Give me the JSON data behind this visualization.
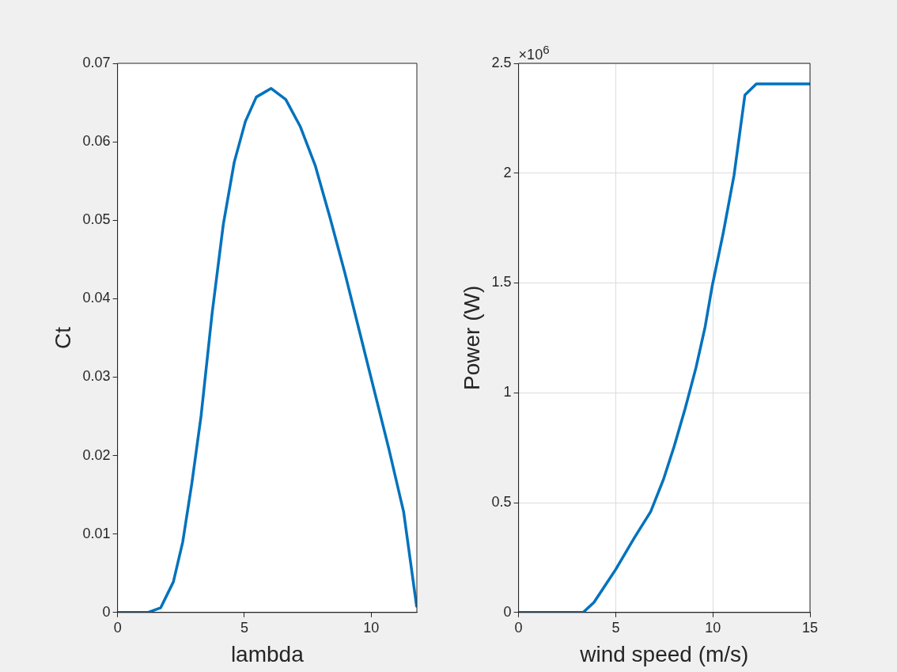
{
  "chart_data": [
    {
      "type": "line",
      "xlabel": "lambda",
      "ylabel": "Ct",
      "xlim": [
        0,
        11.8
      ],
      "xticks": [
        0,
        5,
        10
      ],
      "ylim": [
        0,
        0.07
      ],
      "yticks": [
        0,
        0.01,
        0.02,
        0.03,
        0.04,
        0.05,
        0.06,
        0.07
      ],
      "grid": false,
      "legend": false,
      "series": [
        {
          "color": "#0072bd",
          "x": [
            0,
            1.19,
            1.7,
            2.2,
            2.57,
            2.93,
            3.29,
            3.73,
            4.17,
            4.6,
            5.04,
            5.47,
            6.05,
            6.63,
            7.21,
            7.79,
            8.37,
            8.96,
            9.54,
            10.12,
            10.7,
            11.28,
            11.79
          ],
          "values": [
            0,
            0,
            0.0006,
            0.0039,
            0.009,
            0.0165,
            0.025,
            0.0382,
            0.0495,
            0.0574,
            0.0626,
            0.0657,
            0.0668,
            0.0654,
            0.0619,
            0.057,
            0.0504,
            0.0433,
            0.0358,
            0.0283,
            0.0208,
            0.0128,
            0.0008
          ]
        }
      ]
    },
    {
      "type": "line",
      "xlabel": "wind speed (m/s)",
      "ylabel": "Power (W)",
      "annotations": [
        "×10$^{6}$"
      ],
      "xlim": [
        0,
        15
      ],
      "xticks": [
        0,
        5,
        10,
        15
      ],
      "ylim": [
        0,
        2.5
      ],
      "yticks": [
        0,
        0.5,
        1,
        1.5,
        2,
        2.5
      ],
      "grid": true,
      "legend": false,
      "series": [
        {
          "color": "#0072bd",
          "x": [
            0,
            3.32,
            3.88,
            5.0,
            5.96,
            6.8,
            7.45,
            8.01,
            8.57,
            9.13,
            9.6,
            9.97,
            10.53,
            11.09,
            11.65,
            12.24,
            15
          ],
          "values": [
            0,
            0,
            0.046,
            0.196,
            0.34,
            0.459,
            0.604,
            0.757,
            0.927,
            1.114,
            1.3,
            1.488,
            1.726,
            1.99,
            2.356,
            2.406,
            2.406
          ]
        }
      ]
    }
  ]
}
